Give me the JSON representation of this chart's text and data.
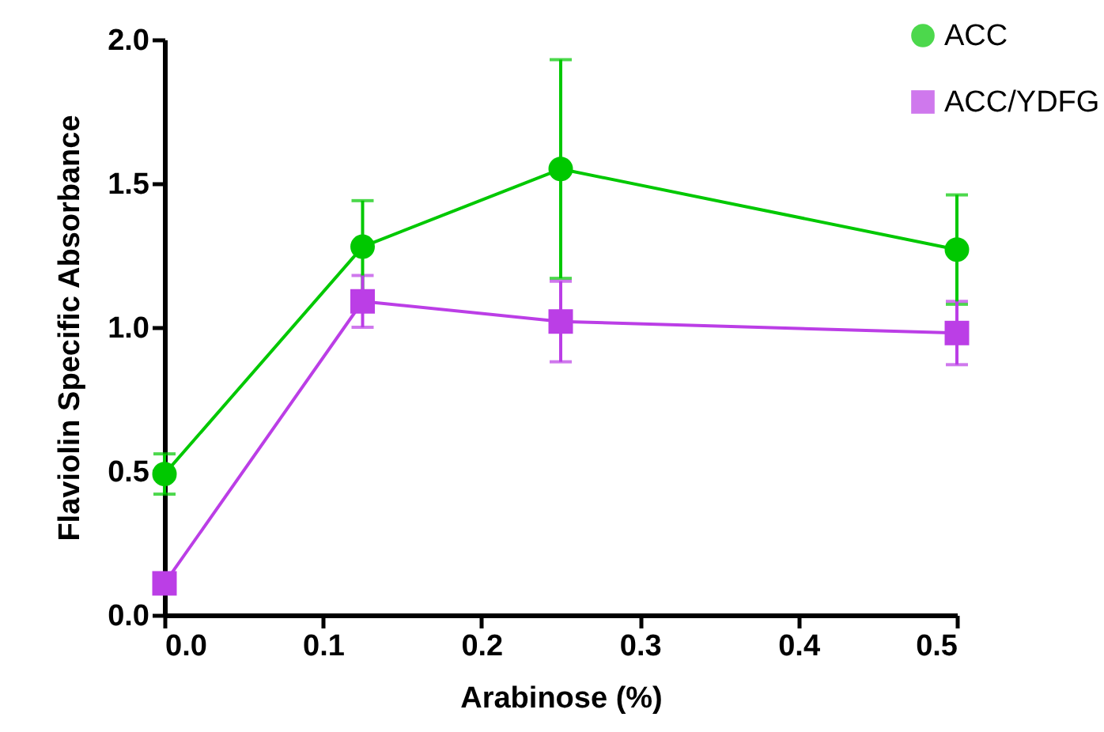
{
  "chart_data": {
    "type": "line",
    "xlabel": "Arabinose (%)",
    "ylabel": "Flaviolin Specific Absorbance",
    "x": [
      0,
      0.125,
      0.25,
      0.5
    ],
    "series": [
      {
        "name": "ACC",
        "color": "#00c800",
        "marker": "circle",
        "values": [
          0.49,
          1.28,
          1.55,
          1.27
        ],
        "errors": [
          0.07,
          0.16,
          0.38,
          0.19
        ]
      },
      {
        "name": "ACC/YDFG",
        "color": "#bb3ee6",
        "marker": "square",
        "values": [
          0.11,
          1.09,
          1.02,
          0.98
        ],
        "errors": [
          null,
          0.09,
          0.14,
          0.11
        ]
      }
    ],
    "xlim": [
      0,
      0.5
    ],
    "xticks": [
      {
        "value": 0,
        "label": "0.0"
      },
      0.1,
      0.2,
      0.3,
      0.4,
      0.5
    ],
    "ylim": [
      0,
      2
    ],
    "yticks": [
      {
        "value": 0,
        "label": "0.0"
      },
      0.5,
      {
        "value": 1,
        "label": "1.0"
      },
      1.5,
      {
        "value": 2,
        "label": "2.0"
      }
    ],
    "grid": false,
    "legend": "top right",
    "line_style": "solid"
  }
}
